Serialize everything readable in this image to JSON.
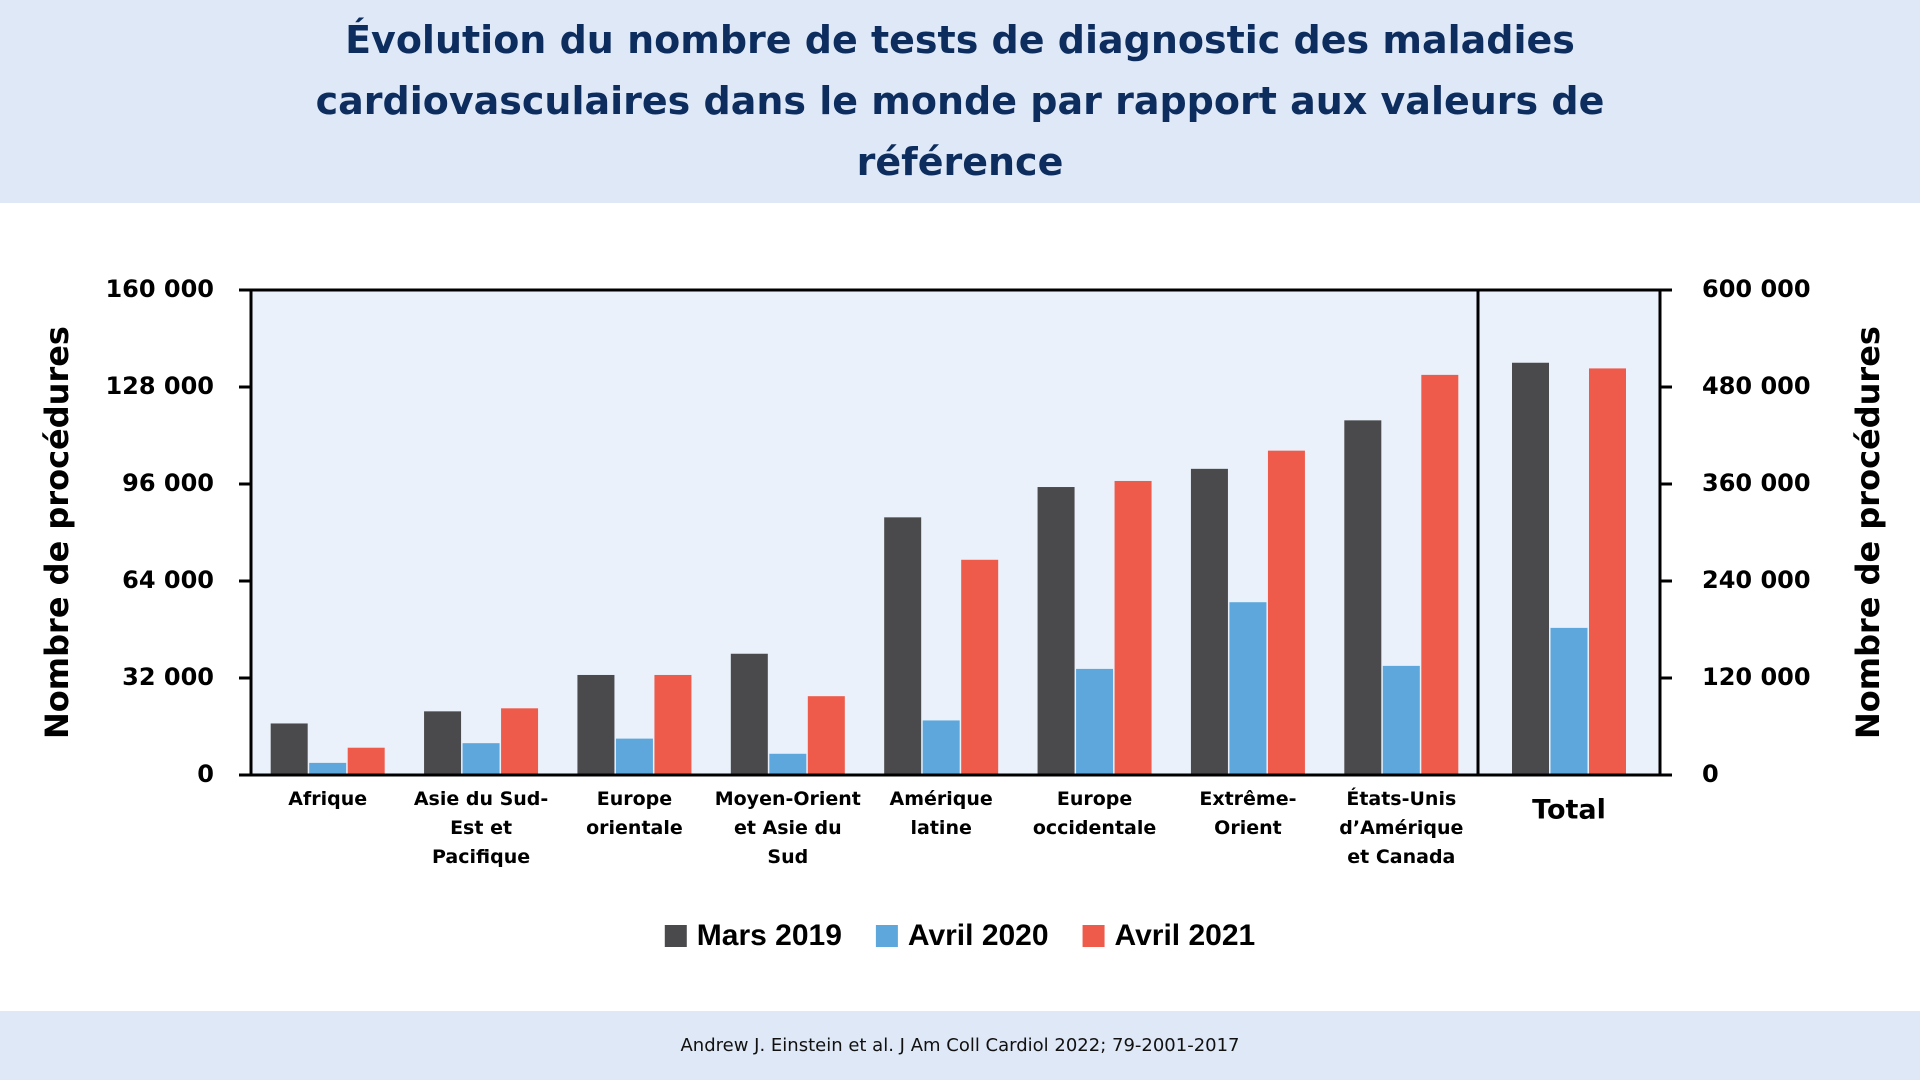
{
  "header": {
    "title": "Évolution du nombre de tests de diagnostic des maladies cardiovasculaires dans le monde par rapport aux valeurs de référence"
  },
  "chart_data": [
    {
      "type": "bar",
      "y_label": "Nombre de procédures",
      "categories": [
        "Afrique",
        "Asie du Sud-Est et Pacifique",
        "Europe orientale",
        "Moyen-Orient et Asie du Sud",
        "Amérique latine",
        "Europe occidentale",
        "Extrême-Orient",
        "États-Unis d’Amérique et Canada"
      ],
      "series": [
        {
          "name": "Mars 2019",
          "color": "#4a4a4c",
          "values": [
            17000,
            21000,
            33000,
            40000,
            85000,
            95000,
            101000,
            117000
          ]
        },
        {
          "name": "Avril 2020",
          "color": "#5ea7dc",
          "values": [
            4000,
            10500,
            12000,
            7000,
            18000,
            35000,
            57000,
            36000
          ]
        },
        {
          "name": "Avril 2021",
          "color": "#ef5b4b",
          "values": [
            9000,
            22000,
            33000,
            26000,
            71000,
            97000,
            107000,
            132000
          ]
        }
      ],
      "ylim": [
        0,
        160000
      ],
      "yticks": [
        0,
        {
          "value": 32000,
          "label": "32 000"
        },
        {
          "value": 64000,
          "label": "64 000"
        },
        {
          "value": 96000,
          "label": "96 000"
        },
        {
          "value": 128000,
          "label": "128 000"
        },
        {
          "value": 160000,
          "label": "160 000"
        }
      ]
    },
    {
      "type": "bar",
      "y_label": "Nombre de procédures",
      "categories": [
        "Total"
      ],
      "series": [
        {
          "color": "#4a4a4c",
          "values": [
            510000
          ],
          "axis": "y2"
        },
        {
          "color": "#5ea7dc",
          "values": [
            182000
          ],
          "axis": "y2"
        },
        {
          "color": "#ef5b4b",
          "values": [
            503000
          ],
          "axis": "y2"
        }
      ],
      "y2lim": [
        0,
        600000
      ],
      "y2ticks": [
        0,
        {
          "value": 120000,
          "label": "120 000"
        },
        {
          "value": 240000,
          "label": "240 000"
        },
        {
          "value": 360000,
          "label": "360 000"
        },
        {
          "value": 480000,
          "label": "480 000"
        },
        {
          "value": 600000,
          "label": "600 000"
        }
      ]
    }
  ],
  "footer": {
    "source": "Andrew J. Einstein et al. J Am Coll Cardiol 2022; 79-2001-2017"
  }
}
